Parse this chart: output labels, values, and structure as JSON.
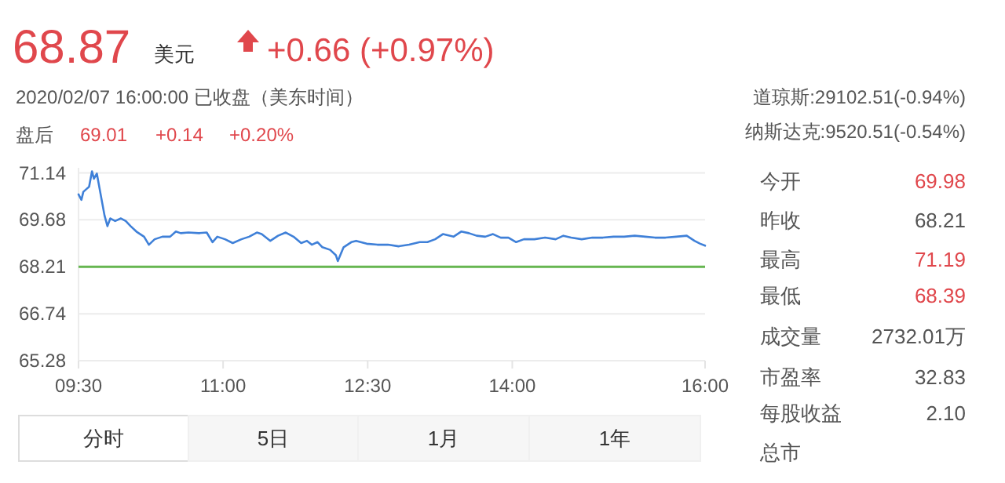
{
  "chart_data": {
    "type": "line",
    "title": "68.87",
    "annotations": [
      "美元",
      "+0.66 (+0.97%)",
      "2020/02/07 16:00:00  已收盘（美东时间）",
      "盘后",
      "69.01",
      "+0.14",
      "+0.20%",
      "道琼斯:29102.51(-0.94%)",
      "纳斯达克:9520.51(-0.54%)",
      "今开",
      "69.98",
      "昨收",
      "68.21",
      "最高",
      "71.19",
      "最低",
      "68.39",
      "成交量",
      "2732.01万",
      "市盈率",
      "32.83",
      "每股收益",
      "2.10",
      "总市",
      "分时",
      "5日",
      "1月",
      "1年"
    ],
    "x": [
      9.5,
      9.53,
      9.55,
      9.61,
      9.64,
      9.66,
      9.69,
      9.72,
      9.74,
      9.77,
      9.8,
      9.83,
      9.88,
      9.94,
      9.99,
      10.04,
      10.1,
      10.18,
      10.23,
      10.29,
      10.37,
      10.45,
      10.51,
      10.56,
      10.64,
      10.75,
      10.83,
      10.89,
      10.94,
      11.02,
      11.1,
      11.19,
      11.27,
      11.35,
      11.4,
      11.49,
      11.57,
      11.65,
      11.73,
      11.81,
      11.87,
      11.92,
      11.98,
      12.03,
      12.11,
      12.17,
      12.19,
      12.25,
      12.33,
      12.38,
      12.49,
      12.6,
      12.71,
      12.82,
      12.93,
      13.04,
      13.12,
      13.2,
      13.28,
      13.39,
      13.47,
      13.55,
      13.63,
      13.72,
      13.8,
      13.88,
      13.96,
      14.04,
      14.12,
      14.23,
      14.34,
      14.45,
      14.53,
      14.61,
      14.72,
      14.83,
      14.94,
      15.05,
      15.16,
      15.27,
      15.38,
      15.48,
      15.59,
      15.7,
      15.81,
      15.89,
      15.95,
      16.0
    ],
    "series": [
      {
        "color": "#3f80d8",
        "values": [
          70.47,
          70.3,
          70.55,
          70.71,
          71.19,
          70.96,
          71.12,
          70.63,
          70.3,
          69.81,
          69.48,
          69.72,
          69.64,
          69.72,
          69.64,
          69.48,
          69.31,
          69.15,
          68.9,
          69.07,
          69.15,
          69.15,
          69.31,
          69.26,
          69.28,
          69.26,
          69.28,
          68.98,
          69.15,
          69.07,
          68.95,
          69.07,
          69.15,
          69.28,
          69.23,
          69.02,
          69.18,
          69.28,
          69.15,
          68.95,
          69.02,
          68.9,
          68.98,
          68.82,
          68.74,
          68.57,
          68.39,
          68.82,
          68.98,
          69.02,
          68.93,
          68.9,
          68.9,
          68.85,
          68.9,
          68.98,
          68.98,
          69.07,
          69.23,
          69.15,
          69.31,
          69.26,
          69.18,
          69.15,
          69.23,
          69.12,
          69.12,
          68.98,
          69.07,
          69.07,
          69.12,
          69.07,
          69.18,
          69.12,
          69.07,
          69.12,
          69.12,
          69.15,
          69.15,
          69.18,
          69.15,
          69.12,
          69.12,
          69.15,
          69.18,
          69.02,
          68.93,
          68.87
        ]
      }
    ],
    "xlim": [
      9.5,
      16
    ],
    "xticks": [
      {
        "value": 9.5,
        "label": "09:30"
      },
      {
        "value": 11,
        "label": "11:00"
      },
      {
        "value": 12.5,
        "label": "12:30"
      },
      {
        "value": 14,
        "label": "14:00"
      },
      {
        "value": 16,
        "label": "16:00"
      }
    ],
    "ylim": [
      65.28,
      71.3
    ],
    "yticks": [
      65.28,
      66.74,
      68.21,
      69.68,
      71.14
    ],
    "grid": "y",
    "ref_lines": [
      {
        "axis": "y",
        "value": 68.21,
        "color": "#66b650"
      }
    ]
  }
}
